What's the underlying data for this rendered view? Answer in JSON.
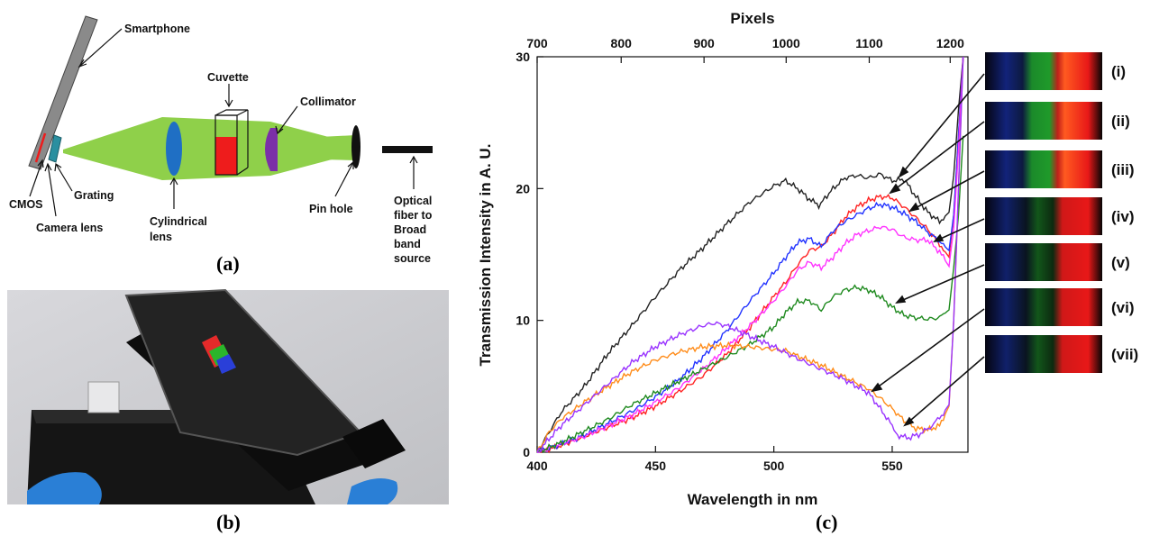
{
  "panel_a": {
    "caption": "(a)",
    "labels": {
      "smartphone": "Smartphone",
      "cuvette": "Cuvette",
      "collimator": "Collimator",
      "cmos": "CMOS",
      "grating": "Grating",
      "camera_lens": "Camera lens",
      "cylindrical_lens_1": "Cylindrical",
      "cylindrical_lens_2": "lens",
      "pin_hole": "Pin hole",
      "fiber_1": "Optical",
      "fiber_2": "fiber to",
      "fiber_3": "Broad",
      "fiber_4": "band",
      "fiber_5": "source"
    }
  },
  "panel_b": {
    "caption": "(b)"
  },
  "panel_c": {
    "caption": "(c)",
    "spectra_labels": [
      "(i)",
      "(ii)",
      "(iii)",
      "(iv)",
      "(v)",
      "(vi)",
      "(vii)"
    ]
  },
  "colors": {
    "beam": "#8fd04a",
    "cuvette_liquid": "#ee1c1c",
    "lens": "#1f6fc4",
    "collimator": "#7b2fa8",
    "grating": "#2a8fa0"
  },
  "chart_data": {
    "type": "line",
    "xlabel": "Wavelength in nm",
    "ylabel": "Transmission Intensity in A. U.",
    "x2label": "Pixels",
    "xlim": [
      400,
      582
    ],
    "ylim": [
      0,
      30
    ],
    "x_ticks": [
      400,
      450,
      500,
      550
    ],
    "y_ticks": [
      0,
      10,
      20,
      30
    ],
    "x2_ticks": [
      {
        "pixel": 700,
        "wavelength": 400
      },
      {
        "pixel": 800,
        "wavelength": 435.5
      },
      {
        "pixel": 900,
        "wavelength": 470.5
      },
      {
        "pixel": 1000,
        "wavelength": 505.2
      },
      {
        "pixel": 1100,
        "wavelength": 540.3
      },
      {
        "pixel": 1200,
        "wavelength": 574.5
      }
    ],
    "series": [
      {
        "color": "#222222",
        "x": [
          400,
          405,
          410,
          420,
          430,
          440,
          450,
          460,
          470,
          480,
          490,
          500,
          505,
          510,
          515,
          519,
          525,
          530,
          535,
          540,
          545,
          550,
          555,
          560,
          565,
          570,
          574,
          576,
          578,
          580
        ],
        "y": [
          0,
          1.5,
          3,
          5,
          7.5,
          9.6,
          11.8,
          13.8,
          15.5,
          17.3,
          19,
          20.2,
          20.6,
          20.0,
          19.2,
          18.7,
          20.0,
          20.8,
          21.0,
          20.8,
          21.1,
          20.6,
          20.7,
          19.4,
          18.2,
          17.5,
          18.2,
          21,
          26,
          30
        ]
      },
      {
        "color": "#ff2222",
        "x": [
          400,
          410,
          420,
          430,
          440,
          450,
          460,
          470,
          480,
          490,
          500,
          505,
          510,
          515,
          520,
          525,
          530,
          535,
          540,
          545,
          550,
          555,
          560,
          565,
          570,
          574,
          576,
          578,
          580
        ],
        "y": [
          0,
          0.5,
          1.2,
          1.9,
          2.6,
          3.5,
          4.6,
          5.8,
          7.4,
          9.5,
          11.8,
          12.9,
          14.2,
          15.3,
          15.6,
          16.6,
          17.8,
          18.6,
          19.1,
          19.4,
          19.3,
          18.6,
          17.8,
          16.9,
          15.8,
          14.8,
          18,
          24,
          30
        ]
      },
      {
        "color": "#2233ff",
        "x": [
          400,
          410,
          420,
          430,
          440,
          450,
          460,
          470,
          480,
          490,
          500,
          505,
          510,
          515,
          520,
          525,
          530,
          535,
          540,
          545,
          550,
          555,
          560,
          565,
          570,
          574,
          576,
          578,
          580
        ],
        "y": [
          0,
          0.6,
          1.3,
          2.2,
          3.1,
          4.2,
          5.5,
          7.2,
          9.2,
          11.5,
          13.6,
          14.8,
          15.9,
          16.2,
          15.6,
          16.8,
          17.5,
          18.0,
          18.5,
          18.8,
          18.6,
          18.1,
          17.5,
          16.7,
          16.0,
          15.3,
          18,
          24,
          30
        ]
      },
      {
        "color": "#ff33ff",
        "x": [
          400,
          410,
          420,
          430,
          440,
          450,
          460,
          470,
          480,
          490,
          500,
          505,
          510,
          515,
          520,
          525,
          530,
          535,
          540,
          545,
          550,
          555,
          560,
          565,
          570,
          574,
          576,
          578,
          580
        ],
        "y": [
          0,
          0.6,
          1.2,
          2.0,
          2.8,
          3.8,
          4.9,
          6.3,
          7.9,
          9.6,
          11.5,
          12.6,
          13.8,
          14.4,
          14.0,
          14.8,
          15.8,
          16.5,
          16.8,
          17.1,
          16.9,
          16.3,
          16.1,
          16.1,
          15.2,
          14.1,
          17,
          23,
          30
        ]
      },
      {
        "color": "#1f8a1f",
        "x": [
          400,
          410,
          420,
          430,
          440,
          450,
          460,
          470,
          480,
          490,
          500,
          505,
          510,
          515,
          520,
          525,
          530,
          535,
          540,
          545,
          550,
          555,
          560,
          565,
          570,
          574,
          576,
          578,
          580
        ],
        "y": [
          0,
          0.7,
          1.6,
          2.5,
          3.6,
          4.5,
          5.4,
          6.3,
          7.2,
          8.2,
          9.5,
          10.6,
          11.4,
          11.5,
          10.8,
          11.8,
          12.3,
          12.5,
          12.3,
          11.8,
          11.0,
          10.4,
          10.2,
          10.1,
          10.2,
          10.8,
          14,
          18,
          24
        ]
      },
      {
        "color": "#ff8c1a",
        "x": [
          400,
          405,
          410,
          420,
          430,
          440,
          450,
          460,
          470,
          480,
          490,
          500,
          505,
          510,
          520,
          530,
          540,
          545,
          550,
          555,
          560,
          565,
          570,
          574,
          576,
          578,
          580
        ],
        "y": [
          0,
          1.5,
          2.5,
          3.8,
          5.0,
          6.1,
          7.0,
          7.6,
          8.0,
          8.1,
          8.0,
          7.8,
          7.7,
          7.3,
          6.6,
          5.7,
          4.8,
          4.1,
          3.3,
          2.4,
          1.8,
          1.7,
          2.0,
          3.5,
          10,
          20,
          30
        ]
      },
      {
        "color": "#9933ff",
        "x": [
          400,
          405,
          410,
          420,
          430,
          440,
          450,
          460,
          470,
          475,
          480,
          485,
          490,
          500,
          510,
          520,
          530,
          540,
          545,
          550,
          553,
          557,
          562,
          566,
          570,
          574,
          576,
          578,
          580
        ],
        "y": [
          0,
          1.0,
          2.0,
          3.6,
          5.2,
          6.8,
          8.0,
          8.9,
          9.6,
          9.8,
          9.6,
          9.2,
          8.8,
          8.0,
          7.1,
          6.3,
          5.5,
          4.5,
          3.3,
          2.0,
          1.2,
          1.1,
          1.4,
          1.9,
          2.6,
          3.6,
          10,
          20,
          30
        ]
      }
    ]
  }
}
